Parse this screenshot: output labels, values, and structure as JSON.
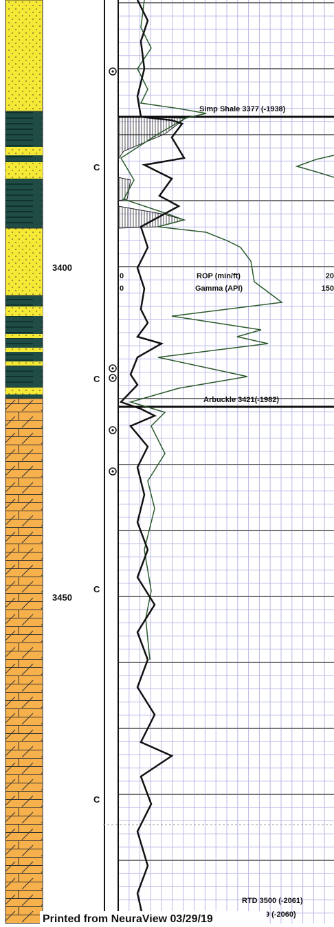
{
  "log_header": {
    "rop_label": "ROP (min/ft)",
    "rop_min": "0",
    "rop_max": "20",
    "gamma_label": "Gamma (API)",
    "gamma_min": "0",
    "gamma_max": "150"
  },
  "depth_labels": [
    "3400",
    "3450"
  ],
  "core_markers": [
    "C",
    "C",
    "C",
    "C"
  ],
  "formation_tops": [
    "Simp Shale 3377 (-1938)",
    "Arbuckle 3421(-1982)"
  ],
  "total_depths": [
    "RTD 3500 (-2061)",
    "LTD 3499 (-2060)"
  ],
  "footer": "Printed from NeuraView 03/29/19"
}
